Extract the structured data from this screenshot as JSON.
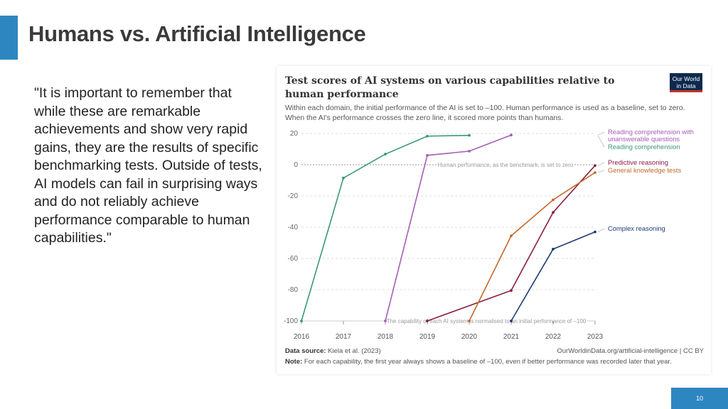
{
  "slide": {
    "title": "Humans vs. Artificial Intelligence",
    "quote": "\"It is important to remember that while these are remarkable achievements and show very rapid gains, they are the results of specific benchmarking tests. Outside of tests, AI models can fail in surprising ways and do not reliably achieve performance comparable to human capabilities.\"",
    "page_number": "10"
  },
  "colors": {
    "accent": "#2e86c1",
    "reading_unanswerable": "#a75db7",
    "reading": "#3a9a6e",
    "predictive": "#8b1e3f",
    "general_knowledge": "#c26a2b",
    "complex": "#1f3a73"
  },
  "logo": {
    "line1": "Our World",
    "line2": "in Data"
  },
  "chart_data": {
    "type": "line",
    "title": "Test scores of AI systems on various capabilities relative to human performance",
    "subtitle": "Within each domain, the initial performance of the AI is set to –100. Human performance is used as a baseline, set to zero. When the AI's performance crosses the zero line, it scored more points than humans.",
    "xlabel": "",
    "ylabel": "",
    "xlim": [
      2016,
      2023
    ],
    "ylim": [
      -100,
      20
    ],
    "x_ticks": [
      "2016",
      "2017",
      "2018",
      "2019",
      "2020",
      "2021",
      "2022",
      "2023"
    ],
    "y_ticks": [
      "20",
      "0",
      "-20",
      "-40",
      "-60",
      "-80",
      "-100"
    ],
    "annotations": {
      "zero_line": "Human performance, as the benchmark, is set to zero",
      "baseline_line": "The capability of each AI system is normalised to an initial performance of –100"
    },
    "series": [
      {
        "name": "Reading comprehension",
        "color_key": "reading",
        "points": [
          [
            2016,
            -100
          ],
          [
            2017,
            -8.5
          ],
          [
            2018,
            6.8
          ],
          [
            2019,
            18.3
          ],
          [
            2020,
            18.8
          ]
        ]
      },
      {
        "name": "Reading comprehension with unanswerable questions",
        "color_key": "reading_unanswerable",
        "points": [
          [
            2018,
            -100
          ],
          [
            2019,
            6
          ],
          [
            2020,
            8.7
          ],
          [
            2021,
            19
          ]
        ]
      },
      {
        "name": "Predictive reasoning",
        "color_key": "predictive",
        "points": [
          [
            2019,
            -100
          ],
          [
            2021,
            -80.5
          ],
          [
            2022,
            -30.5
          ],
          [
            2023,
            -0.5
          ]
        ]
      },
      {
        "name": "General knowledge tests",
        "color_key": "general_knowledge",
        "points": [
          [
            2020,
            -100
          ],
          [
            2021,
            -45.5
          ],
          [
            2022,
            -22.5
          ],
          [
            2023,
            -5
          ]
        ]
      },
      {
        "name": "Complex reasoning",
        "color_key": "complex",
        "points": [
          [
            2021,
            -100
          ],
          [
            2022,
            -54
          ],
          [
            2023,
            -43
          ]
        ]
      }
    ],
    "legend": [
      {
        "lines": [
          "Reading comprehension with",
          "unanswerable questions"
        ],
        "color_key": "reading_unanswerable",
        "anchor_value": 19
      },
      {
        "lines": [
          "Reading comprehension"
        ],
        "color_key": "reading",
        "anchor_value": 18.8
      },
      {
        "lines": [
          "Predictive reasoning"
        ],
        "color_key": "predictive",
        "anchor_value": -0.5
      },
      {
        "lines": [
          "General knowledge tests"
        ],
        "color_key": "general_knowledge",
        "anchor_value": -5
      },
      {
        "lines": [
          "Complex reasoning"
        ],
        "color_key": "complex",
        "anchor_value": -43
      }
    ],
    "legend_position": "right"
  },
  "footer": {
    "source_label": "Data source:",
    "source_text": "Kiela et al. (2023)",
    "url": "OurWorldinData.org/artificial-intelligence | CC BY",
    "note_label": "Note:",
    "note_text": "For each capability, the first year always shows a baseline of –100, even if better performance was recorded later that year."
  }
}
